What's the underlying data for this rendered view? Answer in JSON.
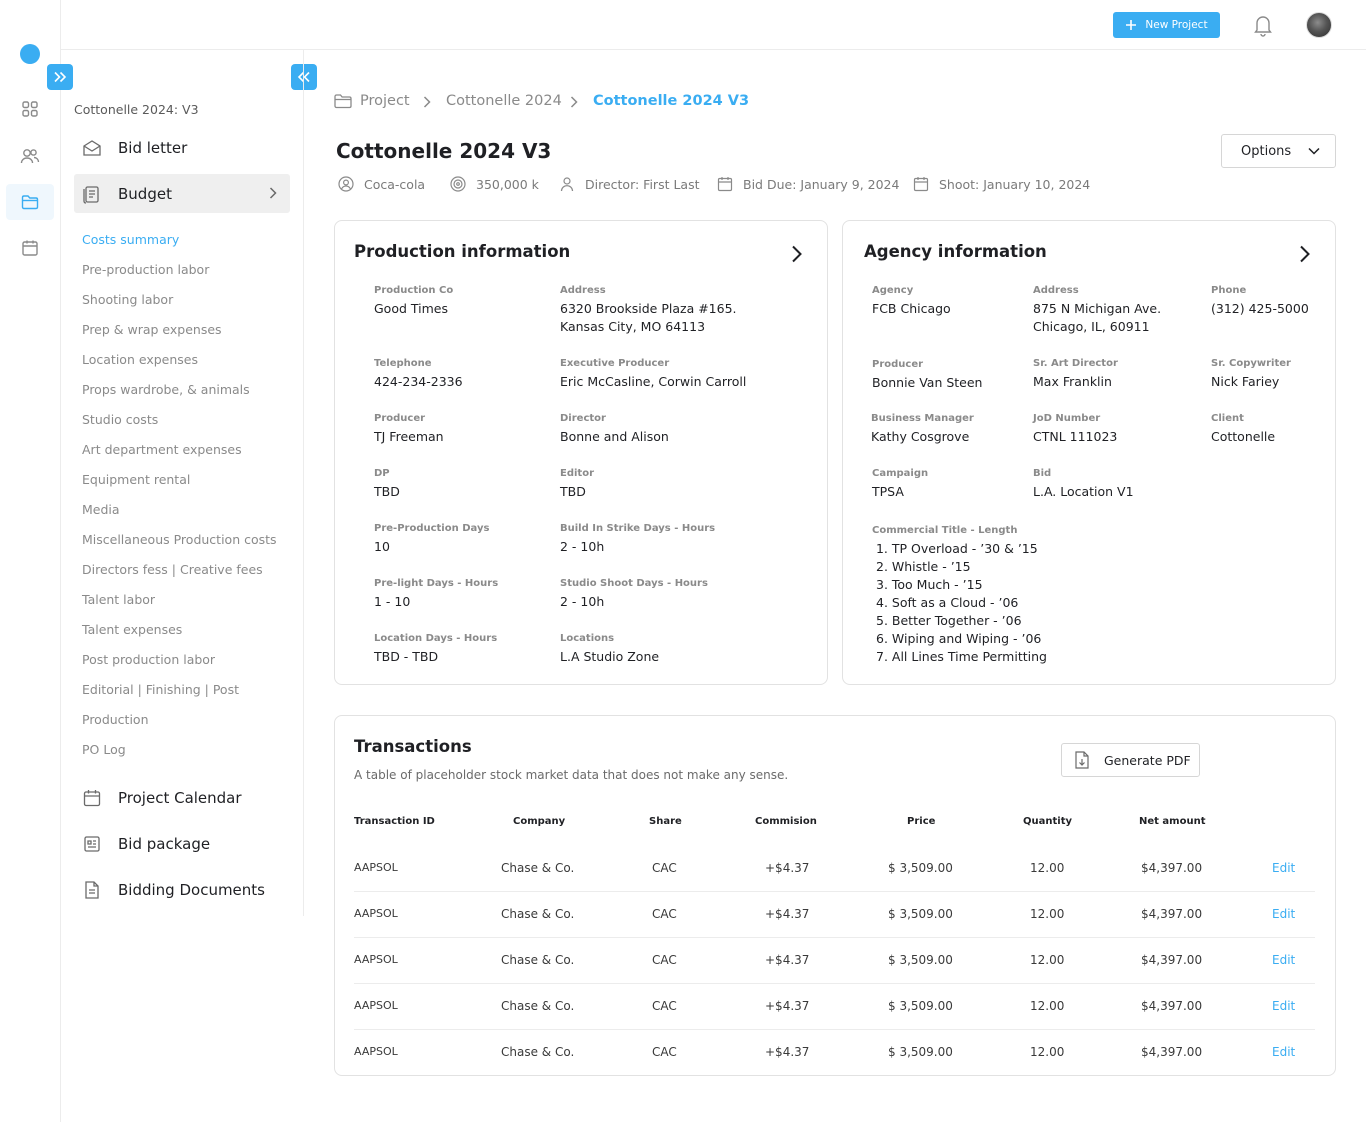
{
  "topbar": {
    "new_project_label": "New Project",
    "icons": [
      "plus-icon",
      "bell-icon",
      "avatar"
    ]
  },
  "rail": {
    "icons": [
      "dashboard-icon",
      "users-icon",
      "folder-icon",
      "calendar-icon"
    ],
    "active": "folder-icon"
  },
  "sidebar": {
    "project_name": "Cottonelle 2024: V3",
    "main": [
      {
        "label": "Bid letter",
        "icon": "envelope-icon"
      },
      {
        "label": "Budget",
        "icon": "budget-icon"
      },
      {
        "label": "Project Calendar",
        "icon": "calendar-icon"
      },
      {
        "label": "Bid package",
        "icon": "package-icon"
      },
      {
        "label": "Bidding Documents",
        "icon": "document-icon"
      }
    ],
    "sub": [
      "Costs summary",
      "Pre-production labor",
      "Shooting labor",
      "Prep & wrap expenses",
      "Location expenses",
      "Props wardrobe, & animals",
      "Studio costs",
      "Art department expenses",
      "Equipment rental",
      "Media",
      "Miscellaneous Production costs",
      "Directors fess | Creative fees",
      "Talent labor",
      "Talent expenses",
      "Post production labor",
      "Editorial | Finishing | Post",
      "Production",
      "PO Log"
    ]
  },
  "breadcrumb": [
    "Project",
    "Cottonelle 2024",
    "Cottonelle 2024 V3"
  ],
  "page": {
    "title": "Cottonelle 2024 V3",
    "options_label": "Options",
    "meta": [
      {
        "icon": "client-icon",
        "text": "Coca-cola"
      },
      {
        "icon": "budget-target-icon",
        "text": "350,000 k"
      },
      {
        "icon": "person-icon",
        "text": "Director: First Last"
      },
      {
        "icon": "calendar-icon",
        "text": "Bid Due: January 9, 2024"
      },
      {
        "icon": "calendar-icon",
        "text": "Shoot: January 10, 2024"
      }
    ]
  },
  "production": {
    "title": "Production information",
    "fields": [
      {
        "label": "Production Co",
        "value": "Good Times"
      },
      {
        "label": "Address",
        "value": "6320 Brookside Plaza #165.",
        "value2": "Kansas City, MO 64113"
      },
      {
        "label": "Telephone",
        "value": "424-234-2336"
      },
      {
        "label": "Executive Producer",
        "value": "Eric McCasline, Corwin Carroll"
      },
      {
        "label": "Producer",
        "value": "TJ Freeman"
      },
      {
        "label": "Director",
        "value": "Bonne and Alison"
      },
      {
        "label": "DP",
        "value": "TBD"
      },
      {
        "label": "Editor",
        "value": "TBD"
      },
      {
        "label": "Pre-Production Days",
        "value": "10"
      },
      {
        "label": "Build In Strike Days - Hours",
        "value": "2 - 10h"
      },
      {
        "label": "Pre-light Days - Hours",
        "value": "1 - 10"
      },
      {
        "label": "Studio Shoot Days - Hours",
        "value": "2 - 10h"
      },
      {
        "label": "Location Days - Hours",
        "value": "TBD - TBD"
      },
      {
        "label": "Locations",
        "value": "L.A Studio Zone"
      }
    ]
  },
  "agency": {
    "title": "Agency information",
    "fields": [
      {
        "label": "Agency",
        "value": "FCB Chicago"
      },
      {
        "label": "Address",
        "value": "875 N Michigan Ave.",
        "value2": "Chicago, IL, 60911"
      },
      {
        "label": "Phone",
        "value": "(312) 425-5000"
      },
      {
        "label": "Producer",
        "value": "Bonnie Van Steen"
      },
      {
        "label": "Sr. Art Director",
        "value": "Max  Franklin"
      },
      {
        "label": "Sr. Copywriter",
        "value": "Nick Fariey"
      },
      {
        "label": "Business Manager",
        "value": "Kathy Cosgrove"
      },
      {
        "label": "JoD Number",
        "value": "CTNL 111023"
      },
      {
        "label": "Client",
        "value": "Cottonelle"
      },
      {
        "label": "Campaign",
        "value": "TPSA"
      },
      {
        "label": "Bid",
        "value": "L.A. Location V1"
      }
    ],
    "commercial_label": "Commercial Title - Length",
    "commercial_titles": [
      " 1. TP Overload - ’30 & ’15",
      "2. Whistle - ’15",
      "3. Too Much - ’15",
      "4. Soft as a Cloud - ’06",
      "5. Better Together - ’06",
      "6. Wiping and Wiping - ’06",
      "7. All Lines Time Permitting"
    ]
  },
  "transactions": {
    "title": "Transactions",
    "description": "A table of placeholder stock market data that does not make any sense.",
    "generate_pdf_label": "Generate PDF",
    "columns": [
      "Transaction ID",
      "Company",
      "Share",
      "Commision",
      "Price",
      "Quantity",
      "Net amount"
    ],
    "rows": [
      {
        "id": "AAPSOL",
        "company": "Chase & Co.",
        "share": "CAC",
        "commission": "+$4.37",
        "price": "$ 3,509.00",
        "quantity": "12.00",
        "net": "$4,397.00",
        "action": "Edit"
      },
      {
        "id": "AAPSOL",
        "company": "Chase & Co.",
        "share": "CAC",
        "commission": "+$4.37",
        "price": "$ 3,509.00",
        "quantity": "12.00",
        "net": "$4,397.00",
        "action": "Edit"
      },
      {
        "id": "AAPSOL",
        "company": "Chase & Co.",
        "share": "CAC",
        "commission": "+$4.37",
        "price": "$ 3,509.00",
        "quantity": "12.00",
        "net": "$4,397.00",
        "action": "Edit"
      },
      {
        "id": "AAPSOL",
        "company": "Chase & Co.",
        "share": "CAC",
        "commission": "+$4.37",
        "price": "$ 3,509.00",
        "quantity": "12.00",
        "net": "$4,397.00",
        "action": "Edit"
      },
      {
        "id": "AAPSOL",
        "company": "Chase & Co.",
        "share": "CAC",
        "commission": "+$4.37",
        "price": "$ 3,509.00",
        "quantity": "12.00",
        "net": "$4,397.00",
        "action": "Edit"
      }
    ]
  },
  "colors": {
    "accent": "#3aadf2",
    "text": "#1f2024",
    "muted": "#8a8a8a",
    "border": "#e2e2e2"
  }
}
